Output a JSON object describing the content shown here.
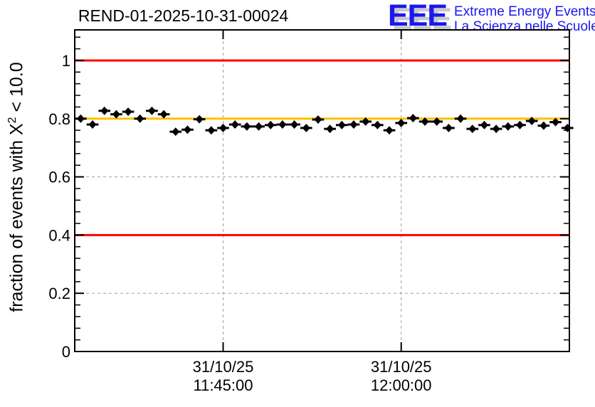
{
  "header": {
    "title": "REND-01-2025-10-31-00024",
    "logo": {
      "acronym": "EEE",
      "line1": "Extreme Energy Events",
      "line2": "La Scienza nelle Scuole",
      "blue": "#1a18f0",
      "shadow_gray": "#c9c9c9"
    }
  },
  "chart_data": {
    "type": "scatter",
    "title": "REND-01-2025-10-31-00024",
    "xlabel": "",
    "ylabel": "fraction of events with X^2 < 10.0",
    "ylabel_parts": {
      "prefix": "fraction of events with X",
      "sup": "2",
      "suffix": " < 10.0"
    },
    "date": "31/10/25",
    "x_start": "11:33:00",
    "x_step_seconds": 60,
    "x_error_seconds": 30,
    "y": [
      0.8,
      0.78,
      0.827,
      0.815,
      0.824,
      0.8,
      0.827,
      0.815,
      0.755,
      0.762,
      0.798,
      0.76,
      0.768,
      0.78,
      0.773,
      0.773,
      0.778,
      0.78,
      0.78,
      0.768,
      0.797,
      0.765,
      0.778,
      0.78,
      0.79,
      0.778,
      0.76,
      0.785,
      0.802,
      0.79,
      0.79,
      0.768,
      0.8,
      0.765,
      0.778,
      0.765,
      0.773,
      0.778,
      0.792,
      0.776,
      0.788,
      0.768
    ],
    "xlim": [
      "11:32:30",
      "12:14:10"
    ],
    "ylim": [
      0,
      1.105
    ],
    "x_ticks": [
      {
        "date": "31/10/25",
        "time": "11:45:00"
      },
      {
        "date": "31/10/25",
        "time": "12:00:00"
      }
    ],
    "y_major_ticks": [
      0,
      0.2,
      0.4,
      0.6,
      0.8,
      1.0
    ],
    "y_tick_labels": [
      "0",
      "0.2",
      "0.4",
      "0.6",
      "0.8",
      "1"
    ],
    "y_minor_step": 0.04,
    "grid": true,
    "grid_style": "dashed",
    "legend_position": "none",
    "reference_lines": [
      {
        "y": 1.0,
        "color": "#ff0000"
      },
      {
        "y": 0.8,
        "color": "#ffc000"
      },
      {
        "y": 0.4,
        "color": "#ff0000"
      }
    ],
    "colors": {
      "marker": "#000000",
      "frame": "#000000",
      "grid": "#9e9e9e",
      "red_line": "#ff0000",
      "orange_line": "#ffc000"
    }
  }
}
